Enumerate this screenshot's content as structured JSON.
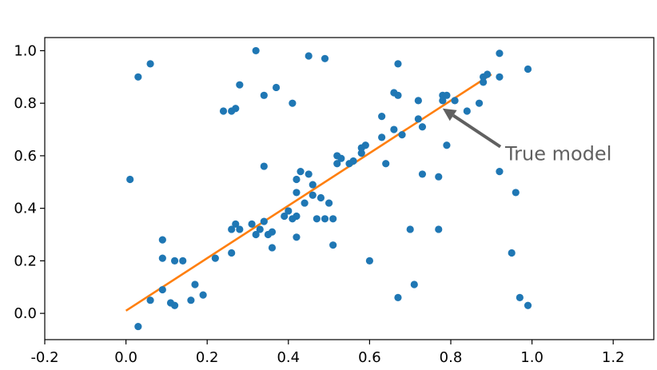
{
  "chart_data": {
    "type": "scatter",
    "title": "",
    "xlabel": "",
    "ylabel": "",
    "xlim": [
      -0.2,
      1.3
    ],
    "ylim": [
      -0.1,
      1.05
    ],
    "x_ticks": [
      {
        "value": -0.2,
        "label": "-0.2"
      },
      {
        "value": 0.0,
        "label": "0.0"
      },
      {
        "value": 0.2,
        "label": "0.2"
      },
      {
        "value": 0.4,
        "label": "0.4"
      },
      {
        "value": 0.6,
        "label": "0.6"
      },
      {
        "value": 0.8,
        "label": "0.8"
      },
      {
        "value": 1.0,
        "label": "1.0"
      },
      {
        "value": 1.2,
        "label": "1.2"
      }
    ],
    "y_ticks": [
      {
        "value": 0.0,
        "label": "0.0"
      },
      {
        "value": 0.2,
        "label": "0.2"
      },
      {
        "value": 0.4,
        "label": "0.4"
      },
      {
        "value": 0.6,
        "label": "0.6"
      },
      {
        "value": 0.8,
        "label": "0.8"
      },
      {
        "value": 1.0,
        "label": "1.0"
      }
    ],
    "grid": false,
    "colors": {
      "points": "#1f77b4",
      "line": "#ff7f0e",
      "annotation": "#606060"
    },
    "points": [
      [
        0.03,
        -0.05
      ],
      [
        0.01,
        0.51
      ],
      [
        0.03,
        0.9
      ],
      [
        0.06,
        0.95
      ],
      [
        0.06,
        0.05
      ],
      [
        0.09,
        0.28
      ],
      [
        0.09,
        0.21
      ],
      [
        0.09,
        0.09
      ],
      [
        0.11,
        0.04
      ],
      [
        0.12,
        0.2
      ],
      [
        0.12,
        0.03
      ],
      [
        0.14,
        0.2
      ],
      [
        0.16,
        0.05
      ],
      [
        0.17,
        0.11
      ],
      [
        0.19,
        0.07
      ],
      [
        0.22,
        0.21
      ],
      [
        0.24,
        0.77
      ],
      [
        0.26,
        0.77
      ],
      [
        0.26,
        0.32
      ],
      [
        0.26,
        0.23
      ],
      [
        0.27,
        0.78
      ],
      [
        0.27,
        0.34
      ],
      [
        0.28,
        0.32
      ],
      [
        0.28,
        0.87
      ],
      [
        0.31,
        0.34
      ],
      [
        0.32,
        1.0
      ],
      [
        0.32,
        0.3
      ],
      [
        0.33,
        0.32
      ],
      [
        0.34,
        0.83
      ],
      [
        0.34,
        0.35
      ],
      [
        0.34,
        0.56
      ],
      [
        0.35,
        0.3
      ],
      [
        0.36,
        0.31
      ],
      [
        0.36,
        0.25
      ],
      [
        0.37,
        0.86
      ],
      [
        0.39,
        0.37
      ],
      [
        0.4,
        0.39
      ],
      [
        0.41,
        0.8
      ],
      [
        0.41,
        0.36
      ],
      [
        0.42,
        0.46
      ],
      [
        0.42,
        0.51
      ],
      [
        0.42,
        0.37
      ],
      [
        0.42,
        0.29
      ],
      [
        0.43,
        0.54
      ],
      [
        0.44,
        0.42
      ],
      [
        0.45,
        0.53
      ],
      [
        0.46,
        0.45
      ],
      [
        0.46,
        0.49
      ],
      [
        0.45,
        0.98
      ],
      [
        0.47,
        0.36
      ],
      [
        0.48,
        0.44
      ],
      [
        0.49,
        0.36
      ],
      [
        0.49,
        0.97
      ],
      [
        0.5,
        0.42
      ],
      [
        0.51,
        0.26
      ],
      [
        0.51,
        0.36
      ],
      [
        0.52,
        0.57
      ],
      [
        0.52,
        0.6
      ],
      [
        0.53,
        0.59
      ],
      [
        0.55,
        0.57
      ],
      [
        0.56,
        0.58
      ],
      [
        0.58,
        0.61
      ],
      [
        0.58,
        0.63
      ],
      [
        0.59,
        0.64
      ],
      [
        0.6,
        0.2
      ],
      [
        0.63,
        0.75
      ],
      [
        0.63,
        0.67
      ],
      [
        0.64,
        0.57
      ],
      [
        0.66,
        0.7
      ],
      [
        0.66,
        0.84
      ],
      [
        0.67,
        0.83
      ],
      [
        0.67,
        0.06
      ],
      [
        0.67,
        0.95
      ],
      [
        0.68,
        0.68
      ],
      [
        0.7,
        0.32
      ],
      [
        0.72,
        0.81
      ],
      [
        0.72,
        0.74
      ],
      [
        0.71,
        0.11
      ],
      [
        0.73,
        0.71
      ],
      [
        0.73,
        0.53
      ],
      [
        0.77,
        0.52
      ],
      [
        0.77,
        0.32
      ],
      [
        0.78,
        0.83
      ],
      [
        0.78,
        0.81
      ],
      [
        0.79,
        0.83
      ],
      [
        0.79,
        0.64
      ],
      [
        0.81,
        0.81
      ],
      [
        0.84,
        0.77
      ],
      [
        0.87,
        0.8
      ],
      [
        0.88,
        0.88
      ],
      [
        0.88,
        0.9
      ],
      [
        0.89,
        0.91
      ],
      [
        0.92,
        0.54
      ],
      [
        0.92,
        0.9
      ],
      [
        0.92,
        0.99
      ],
      [
        0.95,
        0.23
      ],
      [
        0.96,
        0.46
      ],
      [
        0.97,
        0.06
      ],
      [
        0.99,
        0.03
      ],
      [
        0.99,
        0.93
      ]
    ],
    "line": {
      "x": [
        0.0,
        0.9
      ],
      "y": [
        0.01,
        0.91
      ]
    },
    "annotation": {
      "text": "True model",
      "arrow_tip": [
        0.78,
        0.78
      ],
      "text_anchor": [
        0.93,
        0.61
      ]
    }
  }
}
